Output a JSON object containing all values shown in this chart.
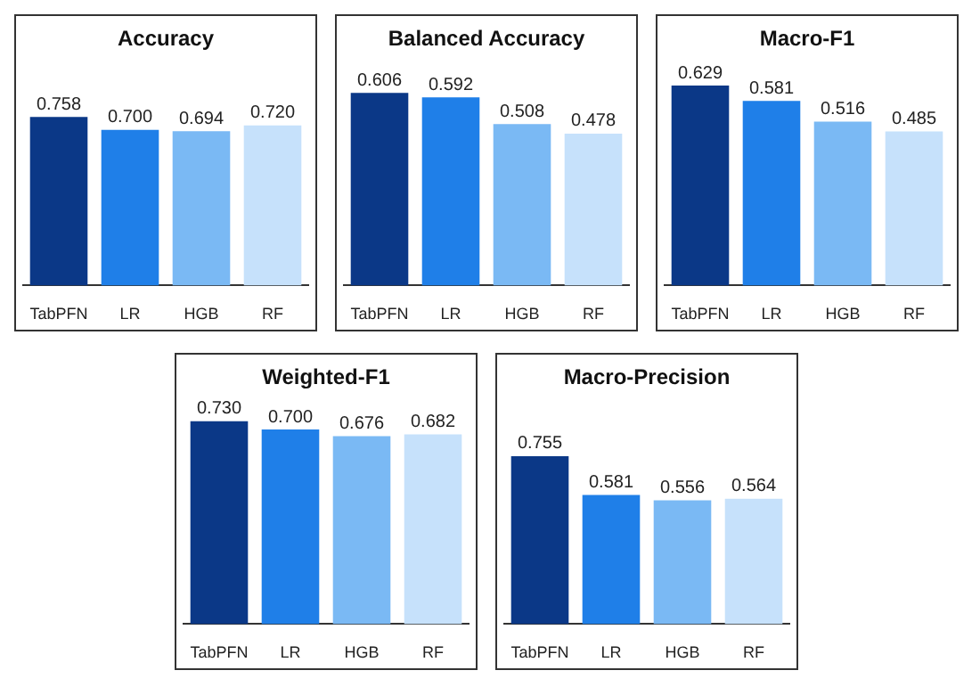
{
  "chart_data": [
    {
      "type": "bar",
      "title": "Accuracy",
      "categories": [
        "TabPFN",
        "LR",
        "HGB",
        "RF"
      ],
      "values": [
        0.758,
        0.7,
        0.694,
        0.72
      ],
      "value_labels": [
        "0.758",
        "0.700",
        "0.694",
        "0.720"
      ],
      "colors": [
        "#0b3887",
        "#1f7fe8",
        "#7ab9f4",
        "#c6e1fb"
      ],
      "tick_labels": "x"
    },
    {
      "type": "bar",
      "title": "Balanced Accuracy",
      "categories": [
        "TabPFN",
        "LR",
        "HGB",
        "RF"
      ],
      "values": [
        0.606,
        0.592,
        0.508,
        0.478
      ],
      "value_labels": [
        "0.606",
        "0.592",
        "0.508",
        "0.478"
      ],
      "colors": [
        "#0b3887",
        "#1f7fe8",
        "#7ab9f4",
        "#c6e1fb"
      ],
      "tick_labels": "x"
    },
    {
      "type": "bar",
      "title": "Macro-F1",
      "categories": [
        "TabPFN",
        "LR",
        "HGB",
        "RF"
      ],
      "values": [
        0.629,
        0.581,
        0.516,
        0.485
      ],
      "value_labels": [
        "0.629",
        "0.581",
        "0.516",
        "0.485"
      ],
      "colors": [
        "#0b3887",
        "#1f7fe8",
        "#7ab9f4",
        "#c6e1fb"
      ],
      "tick_labels": "x"
    },
    {
      "type": "bar",
      "title": "Weighted-F1",
      "categories": [
        "TabPFN",
        "LR",
        "HGB",
        "RF"
      ],
      "values": [
        0.73,
        0.7,
        0.676,
        0.682
      ],
      "value_labels": [
        "0.730",
        "0.700",
        "0.676",
        "0.682"
      ],
      "colors": [
        "#0b3887",
        "#1f7fe8",
        "#7ab9f4",
        "#c6e1fb"
      ],
      "tick_labels": "x"
    },
    {
      "type": "bar",
      "title": "Macro-Precision",
      "categories": [
        "TabPFN",
        "LR",
        "HGB",
        "RF"
      ],
      "values": [
        0.755,
        0.581,
        0.556,
        0.564
      ],
      "value_labels": [
        "0.755",
        "0.581",
        "0.556",
        "0.564"
      ],
      "colors": [
        "#0b3887",
        "#1f7fe8",
        "#7ab9f4",
        "#c6e1fb"
      ],
      "tick_labels": "x"
    }
  ]
}
